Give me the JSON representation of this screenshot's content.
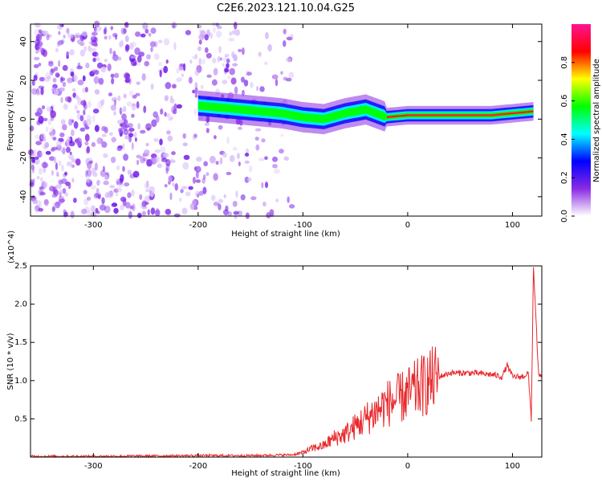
{
  "chart_data": [
    {
      "type": "heatmap",
      "title": "C2E6.2023.121.10.04.G25",
      "xlabel": "Height of straight line (km)",
      "ylabel": "Frequency (Hz)",
      "xlim": [
        -360,
        128
      ],
      "ylim": [
        -50,
        49
      ],
      "x_ticks": [
        -300,
        -200,
        -100,
        0,
        100
      ],
      "y_ticks": [
        -40,
        -20,
        0,
        20,
        40
      ],
      "colorbar": {
        "label": "Normalized spectral amplitude",
        "range": [
          0,
          1
        ],
        "ticks": [
          0.0,
          0.2,
          0.4,
          0.6,
          0.8
        ],
        "colors": [
          "#ffffff",
          "#8a2be2",
          "#0000ff",
          "#00ffff",
          "#00ff00",
          "#ffff00",
          "#ff0000",
          "#ff1493"
        ]
      },
      "ridge": {
        "x": [
          -200,
          -180,
          -160,
          -140,
          -120,
          -100,
          -80,
          -60,
          -40,
          -20,
          0,
          20,
          40,
          60,
          80,
          100,
          120
        ],
        "frequency": [
          7,
          6,
          5,
          4,
          3,
          1,
          0,
          3,
          5,
          1,
          2,
          2,
          2,
          2,
          2,
          3,
          4
        ]
      },
      "noise_region_x": [
        -360,
        -110
      ],
      "grid": false
    },
    {
      "type": "line",
      "xlabel": "Height of straight line (km)",
      "ylabel": "SNR (10 * v/v)",
      "y_multiplier": "(x10^4)",
      "xlim": [
        -360,
        128
      ],
      "ylim": [
        0,
        2.5
      ],
      "x_ticks": [
        -300,
        -200,
        -100,
        0,
        100
      ],
      "y_ticks": [
        0.5,
        1.0,
        1.5,
        2.0,
        2.5
      ],
      "series": [
        {
          "color": "#e8282b",
          "x": [
            -360,
            -300,
            -200,
            -150,
            -110,
            -100,
            -90,
            -80,
            -70,
            -60,
            -50,
            -40,
            -30,
            -20,
            -10,
            0,
            10,
            20,
            30,
            40,
            60,
            80,
            90,
            95,
            100,
            110,
            115,
            118,
            120,
            125,
            128
          ],
          "y": [
            0.01,
            0.01,
            0.02,
            0.02,
            0.03,
            0.06,
            0.12,
            0.15,
            0.25,
            0.3,
            0.4,
            0.5,
            0.6,
            0.7,
            0.75,
            0.82,
            0.9,
            0.98,
            1.05,
            1.1,
            1.1,
            1.08,
            1.05,
            1.2,
            1.05,
            1.05,
            1.1,
            0.5,
            2.5,
            1.05,
            1.07
          ]
        }
      ],
      "grid": false
    }
  ]
}
